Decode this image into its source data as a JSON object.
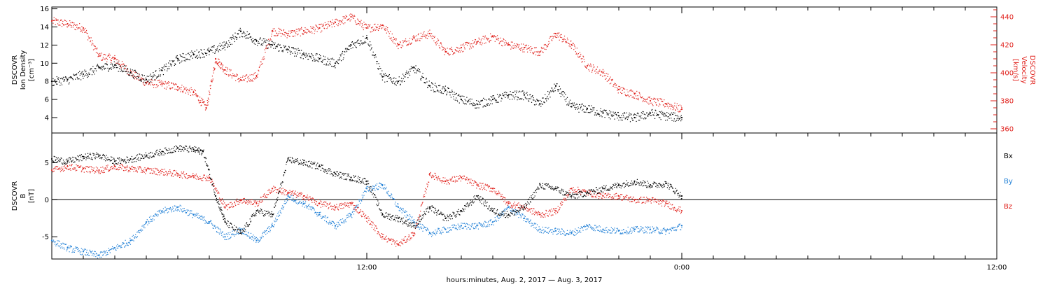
{
  "colors": {
    "black": "#000000",
    "red": "#e0201b",
    "blue": "#1f7fd6"
  },
  "xaxis": {
    "title": "hours:minutes, Aug.  2, 2017 — Aug.  3, 2017",
    "range_hours": [
      0,
      30
    ],
    "tick_labels": [
      {
        "hour": 10,
        "label": "12:00"
      },
      {
        "hour": 20,
        "label": "0:00"
      },
      {
        "hour": 30,
        "label": "12:00"
      }
    ]
  },
  "chart_data": [
    {
      "type": "scatter",
      "panel": "top",
      "ylabel_left": [
        "DSCOVR",
        "Ion Density",
        "[cm⁻³]"
      ],
      "ylabel_right": [
        "DSCOVR",
        "Velocity",
        "[km/s]"
      ],
      "y_left_range": [
        2.3,
        16.2
      ],
      "y_left_ticks": [
        "4",
        "6",
        "8",
        "10",
        "12",
        "14",
        "16"
      ],
      "y_right_range": [
        357,
        447
      ],
      "y_right_ticks": [
        "360",
        "380",
        "400",
        "420",
        "440"
      ],
      "series": [
        {
          "axis": "left",
          "color": "black",
          "x": [
            0.0,
            0.5,
            1.0,
            1.5,
            2.0,
            2.5,
            3.0,
            3.5,
            4.0,
            4.5,
            5.0,
            5.5,
            6.0,
            6.5,
            7.0,
            7.5,
            8.0,
            8.5,
            9.0,
            9.5,
            10.0,
            10.5,
            11.0,
            11.5,
            12.0,
            12.5,
            13.0,
            13.5,
            14.0,
            14.5,
            15.0,
            15.5,
            16.0,
            16.5,
            17.0,
            17.5,
            18.0,
            18.5,
            19.0,
            19.5,
            20.0
          ],
          "y": [
            8.0,
            8.2,
            8.8,
            9.5,
            9.8,
            9.0,
            8.2,
            9.2,
            10.5,
            11.0,
            11.3,
            12.0,
            13.5,
            12.5,
            12.0,
            11.5,
            11.0,
            10.5,
            10.0,
            12.0,
            12.8,
            8.5,
            8.0,
            9.5,
            7.5,
            7.0,
            6.0,
            5.5,
            6.0,
            6.5,
            6.5,
            5.5,
            7.5,
            5.2,
            5.0,
            4.5,
            4.2,
            4.0,
            4.5,
            4.2,
            4.0
          ]
        },
        {
          "axis": "right",
          "color": "red",
          "x": [
            0.0,
            0.5,
            1.0,
            1.5,
            2.0,
            2.5,
            3.0,
            3.5,
            4.0,
            4.5,
            4.9,
            5.2,
            5.5,
            6.0,
            6.5,
            7.0,
            7.5,
            8.0,
            8.5,
            9.0,
            9.5,
            10.0,
            10.5,
            11.0,
            11.5,
            12.0,
            12.5,
            13.0,
            13.5,
            14.0,
            14.5,
            15.0,
            15.5,
            16.0,
            16.5,
            17.0,
            17.5,
            18.0,
            18.5,
            19.0,
            19.5,
            20.0
          ],
          "y": [
            437,
            435,
            432,
            412,
            410,
            400,
            393,
            392,
            390,
            386,
            375,
            410,
            402,
            395,
            398,
            430,
            428,
            430,
            432,
            436,
            440,
            432,
            434,
            420,
            425,
            428,
            415,
            418,
            422,
            426,
            420,
            418,
            415,
            428,
            420,
            405,
            400,
            388,
            385,
            380,
            378,
            374
          ]
        }
      ]
    },
    {
      "type": "scatter",
      "panel": "bottom",
      "ylabel_left": [
        "DSCOVR",
        "B",
        "[nT]"
      ],
      "y_range": [
        -8,
        9
      ],
      "y_ticks": [
        "-5",
        "0",
        "5"
      ],
      "legend": [
        "Bx",
        "By",
        "Bz"
      ],
      "series": [
        {
          "name": "Bx",
          "color": "black",
          "x": [
            0.0,
            0.5,
            1.0,
            1.5,
            2.0,
            2.5,
            3.0,
            3.5,
            4.0,
            4.5,
            4.8,
            5.2,
            5.5,
            6.0,
            6.5,
            7.0,
            7.5,
            8.0,
            8.5,
            9.0,
            9.5,
            10.0,
            10.5,
            11.0,
            11.5,
            12.0,
            12.5,
            13.0,
            13.5,
            14.0,
            14.5,
            15.0,
            15.5,
            16.0,
            16.5,
            17.0,
            17.5,
            18.0,
            18.5,
            19.0,
            19.5,
            20.0
          ],
          "y": [
            5.5,
            5.2,
            5.8,
            6.0,
            5.2,
            5.5,
            6.0,
            6.5,
            7.0,
            6.8,
            6.5,
            0.5,
            -3.0,
            -4.5,
            -1.5,
            -2.0,
            5.5,
            5.0,
            4.5,
            3.5,
            3.0,
            2.5,
            -2.0,
            -2.5,
            -3.5,
            -1.0,
            -2.5,
            -1.5,
            0.5,
            -1.5,
            -2.0,
            -1.0,
            2.0,
            1.5,
            0.5,
            1.0,
            1.5,
            2.0,
            2.5,
            2.0,
            2.2,
            0.5
          ]
        },
        {
          "name": "By",
          "color": "blue",
          "x": [
            0.0,
            0.5,
            1.0,
            1.5,
            2.0,
            2.5,
            3.0,
            3.5,
            4.0,
            4.5,
            5.0,
            5.5,
            6.0,
            6.5,
            7.0,
            7.5,
            8.0,
            8.5,
            9.0,
            9.5,
            10.0,
            10.5,
            11.0,
            11.5,
            12.0,
            12.5,
            13.0,
            13.5,
            14.0,
            14.5,
            15.0,
            15.5,
            16.0,
            16.5,
            17.0,
            17.5,
            18.0,
            18.5,
            19.0,
            19.5,
            20.0
          ],
          "y": [
            -5.5,
            -6.5,
            -7.0,
            -7.5,
            -6.5,
            -5.5,
            -3.0,
            -1.5,
            -1.0,
            -2.0,
            -3.0,
            -5.0,
            -4.0,
            -5.5,
            -3.5,
            0.5,
            -0.5,
            -2.0,
            -3.5,
            -2.0,
            1.5,
            2.0,
            -1.0,
            -3.0,
            -4.5,
            -4.0,
            -3.5,
            -3.5,
            -3.0,
            -1.0,
            -2.5,
            -4.0,
            -4.2,
            -4.5,
            -3.5,
            -4.0,
            -4.2,
            -4.0,
            -4.0,
            -4.2,
            -3.5
          ]
        },
        {
          "name": "Bz",
          "color": "red",
          "x": [
            0.0,
            0.5,
            1.0,
            1.5,
            2.0,
            2.5,
            3.0,
            3.5,
            4.0,
            4.5,
            5.0,
            5.5,
            6.0,
            6.5,
            7.0,
            7.5,
            8.0,
            8.5,
            9.0,
            9.5,
            10.0,
            10.5,
            11.0,
            11.5,
            12.0,
            12.5,
            13.0,
            13.5,
            14.0,
            14.5,
            15.0,
            15.5,
            16.0,
            16.5,
            17.0,
            17.5,
            18.0,
            18.5,
            19.0,
            19.5,
            20.0
          ],
          "y": [
            4.0,
            4.5,
            4.2,
            4.0,
            4.5,
            4.2,
            4.0,
            3.8,
            3.5,
            3.2,
            3.0,
            -1.0,
            0.0,
            -0.5,
            1.5,
            1.0,
            0.5,
            -0.5,
            -1.0,
            -0.5,
            -2.5,
            -5.0,
            -6.0,
            -4.5,
            3.5,
            2.5,
            3.0,
            2.0,
            1.5,
            -0.5,
            -1.0,
            -2.0,
            -1.5,
            1.5,
            1.0,
            0.5,
            0.5,
            0.0,
            0.0,
            -0.5,
            -1.5
          ]
        }
      ]
    }
  ]
}
